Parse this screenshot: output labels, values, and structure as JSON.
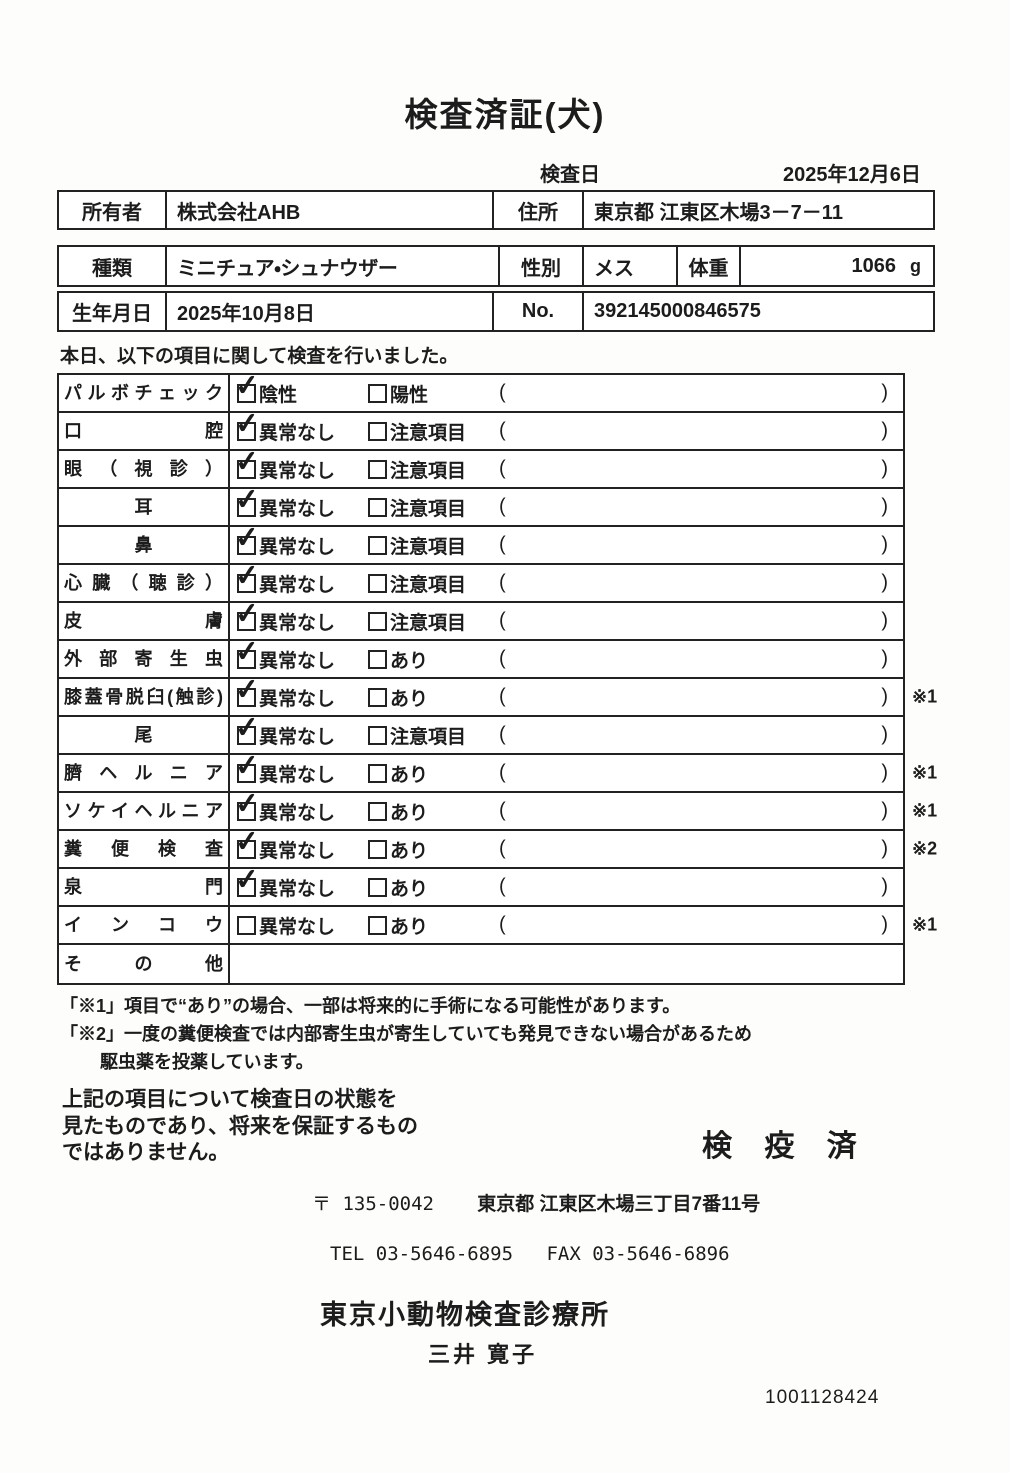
{
  "page": {
    "title": "検査済証(犬)",
    "inspection_date_label": "検査日",
    "inspection_date": "2025年12月6日",
    "intro": "本日、以下の項目に関して検査を行いました。"
  },
  "info": {
    "owner_label": "所有者",
    "owner": "株式会社AHB",
    "address_label": "住所",
    "address": "東京都 江東区木場3－7－11",
    "breed_label": "種類",
    "breed": "ミニチュア・シュナウザー",
    "sex_label": "性別",
    "sex": "メス",
    "weight_label": "体重",
    "weight": "1066",
    "weight_unit": "g",
    "birth_label": "生年月日",
    "birth": "2025年10月8日",
    "no_label": "No.",
    "no": "392145000846575"
  },
  "checklist": {
    "paren_open": "(",
    "paren_close": ")",
    "rows": [
      {
        "label": "パルボチェック",
        "options": [
          {
            "text": "陰性",
            "checked": true
          },
          {
            "text": "陽性",
            "checked": false
          }
        ],
        "note": ""
      },
      {
        "label": "口腔",
        "options": [
          {
            "text": "異常なし",
            "checked": true
          },
          {
            "text": "注意項目",
            "checked": false
          }
        ],
        "note": ""
      },
      {
        "label": "眼（視診）",
        "options": [
          {
            "text": "異常なし",
            "checked": true
          },
          {
            "text": "注意項目",
            "checked": false
          }
        ],
        "note": ""
      },
      {
        "label": "耳",
        "options": [
          {
            "text": "異常なし",
            "checked": true
          },
          {
            "text": "注意項目",
            "checked": false
          }
        ],
        "note": ""
      },
      {
        "label": "鼻",
        "options": [
          {
            "text": "異常なし",
            "checked": true
          },
          {
            "text": "注意項目",
            "checked": false
          }
        ],
        "note": ""
      },
      {
        "label": "心臓（聴診）",
        "options": [
          {
            "text": "異常なし",
            "checked": true
          },
          {
            "text": "注意項目",
            "checked": false
          }
        ],
        "note": ""
      },
      {
        "label": "皮膚",
        "options": [
          {
            "text": "異常なし",
            "checked": true
          },
          {
            "text": "注意項目",
            "checked": false
          }
        ],
        "note": ""
      },
      {
        "label": "外部寄生虫",
        "options": [
          {
            "text": "異常なし",
            "checked": true
          },
          {
            "text": "あり",
            "checked": false
          }
        ],
        "note": ""
      },
      {
        "label": "膝蓋骨脱臼(触診)",
        "options": [
          {
            "text": "異常なし",
            "checked": true
          },
          {
            "text": "あり",
            "checked": false
          }
        ],
        "note": "※1"
      },
      {
        "label": "尾",
        "options": [
          {
            "text": "異常なし",
            "checked": true
          },
          {
            "text": "注意項目",
            "checked": false
          }
        ],
        "note": ""
      },
      {
        "label": "臍ヘルニア",
        "options": [
          {
            "text": "異常なし",
            "checked": true
          },
          {
            "text": "あり",
            "checked": false
          }
        ],
        "note": "※1"
      },
      {
        "label": "ソケイヘルニア",
        "options": [
          {
            "text": "異常なし",
            "checked": true
          },
          {
            "text": "あり",
            "checked": false
          }
        ],
        "note": "※1"
      },
      {
        "label": "糞便検査",
        "options": [
          {
            "text": "異常なし",
            "checked": true
          },
          {
            "text": "あり",
            "checked": false
          }
        ],
        "note": "※2"
      },
      {
        "label": "泉門",
        "options": [
          {
            "text": "異常なし",
            "checked": true
          },
          {
            "text": "あり",
            "checked": false
          }
        ],
        "note": ""
      },
      {
        "label": "インコウ",
        "options": [
          {
            "text": "異常なし",
            "checked": false
          },
          {
            "text": "あり",
            "checked": false
          }
        ],
        "note": "※1"
      },
      {
        "label": "その他",
        "options": [],
        "note": ""
      }
    ]
  },
  "footnotes": {
    "note1": "「※1」項目で“あり”の場合、一部は将来的に手術になる可能性があります。",
    "note2_line1": "「※2」一度の糞便検査では内部寄生虫が寄生していても発見できない場合があるため",
    "note2_line2": "駆虫薬を投薬しています。",
    "disclaimer_line1": "上記の項目について検査日の状態を",
    "disclaimer_line2": "見たものであり、将来を保証するもの",
    "disclaimer_line3": "ではありません。",
    "stamp": "検 疫 済"
  },
  "clinic": {
    "postal": "〒 135-0042",
    "address": "東京都 江東区木場三丁目7番11号",
    "tel": "TEL 03-5646-6895",
    "fax": "FAX 03-5646-6896",
    "name": "東京小動物検査診療所",
    "vet": "三井 寛子",
    "serial": "1001128424"
  }
}
